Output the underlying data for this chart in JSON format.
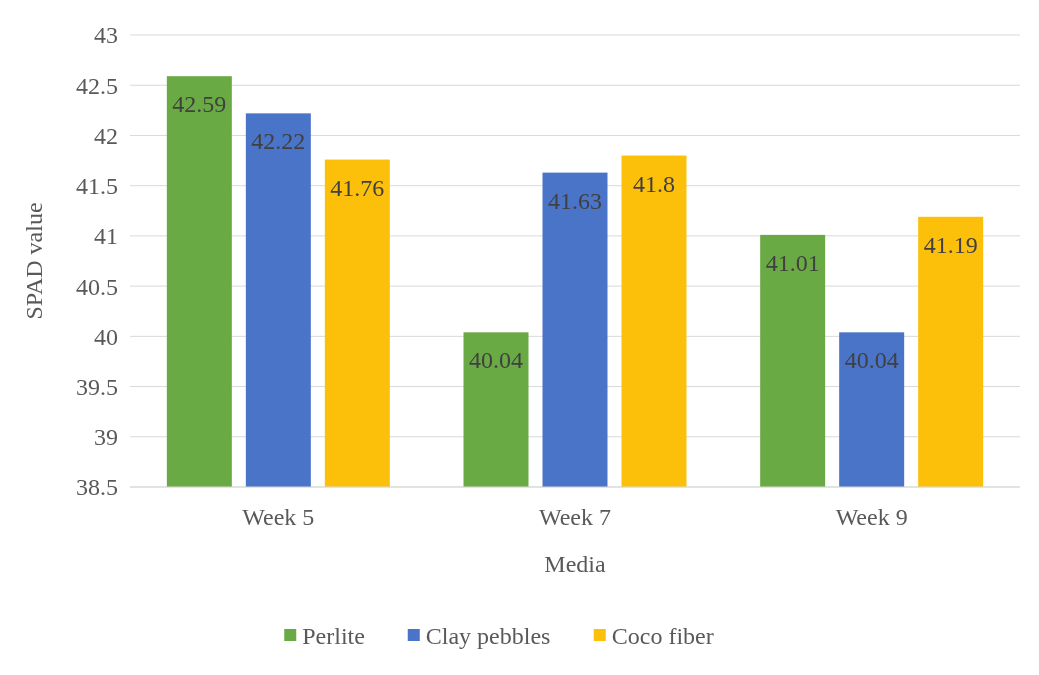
{
  "chart_data": {
    "type": "bar",
    "xlabel": "Media",
    "ylabel": "SPAD value",
    "categories": [
      "Week 5",
      "Week 7",
      "Week 9"
    ],
    "series": [
      {
        "name": "Perlite",
        "color": "#6aaa45",
        "values": [
          42.59,
          40.04,
          41.01
        ]
      },
      {
        "name": "Clay pebbles",
        "color": "#4a74c8",
        "values": [
          42.22,
          41.63,
          40.04
        ]
      },
      {
        "name": "Coco fiber",
        "color": "#fcc00a",
        "values": [
          41.76,
          41.8,
          41.19
        ]
      }
    ],
    "ylim": [
      38.5,
      43
    ],
    "yticks": [
      38.5,
      39,
      39.5,
      40,
      40.5,
      41,
      41.5,
      42,
      42.5,
      43
    ],
    "grid": "y",
    "legend": "bottom",
    "data_labels": true
  }
}
